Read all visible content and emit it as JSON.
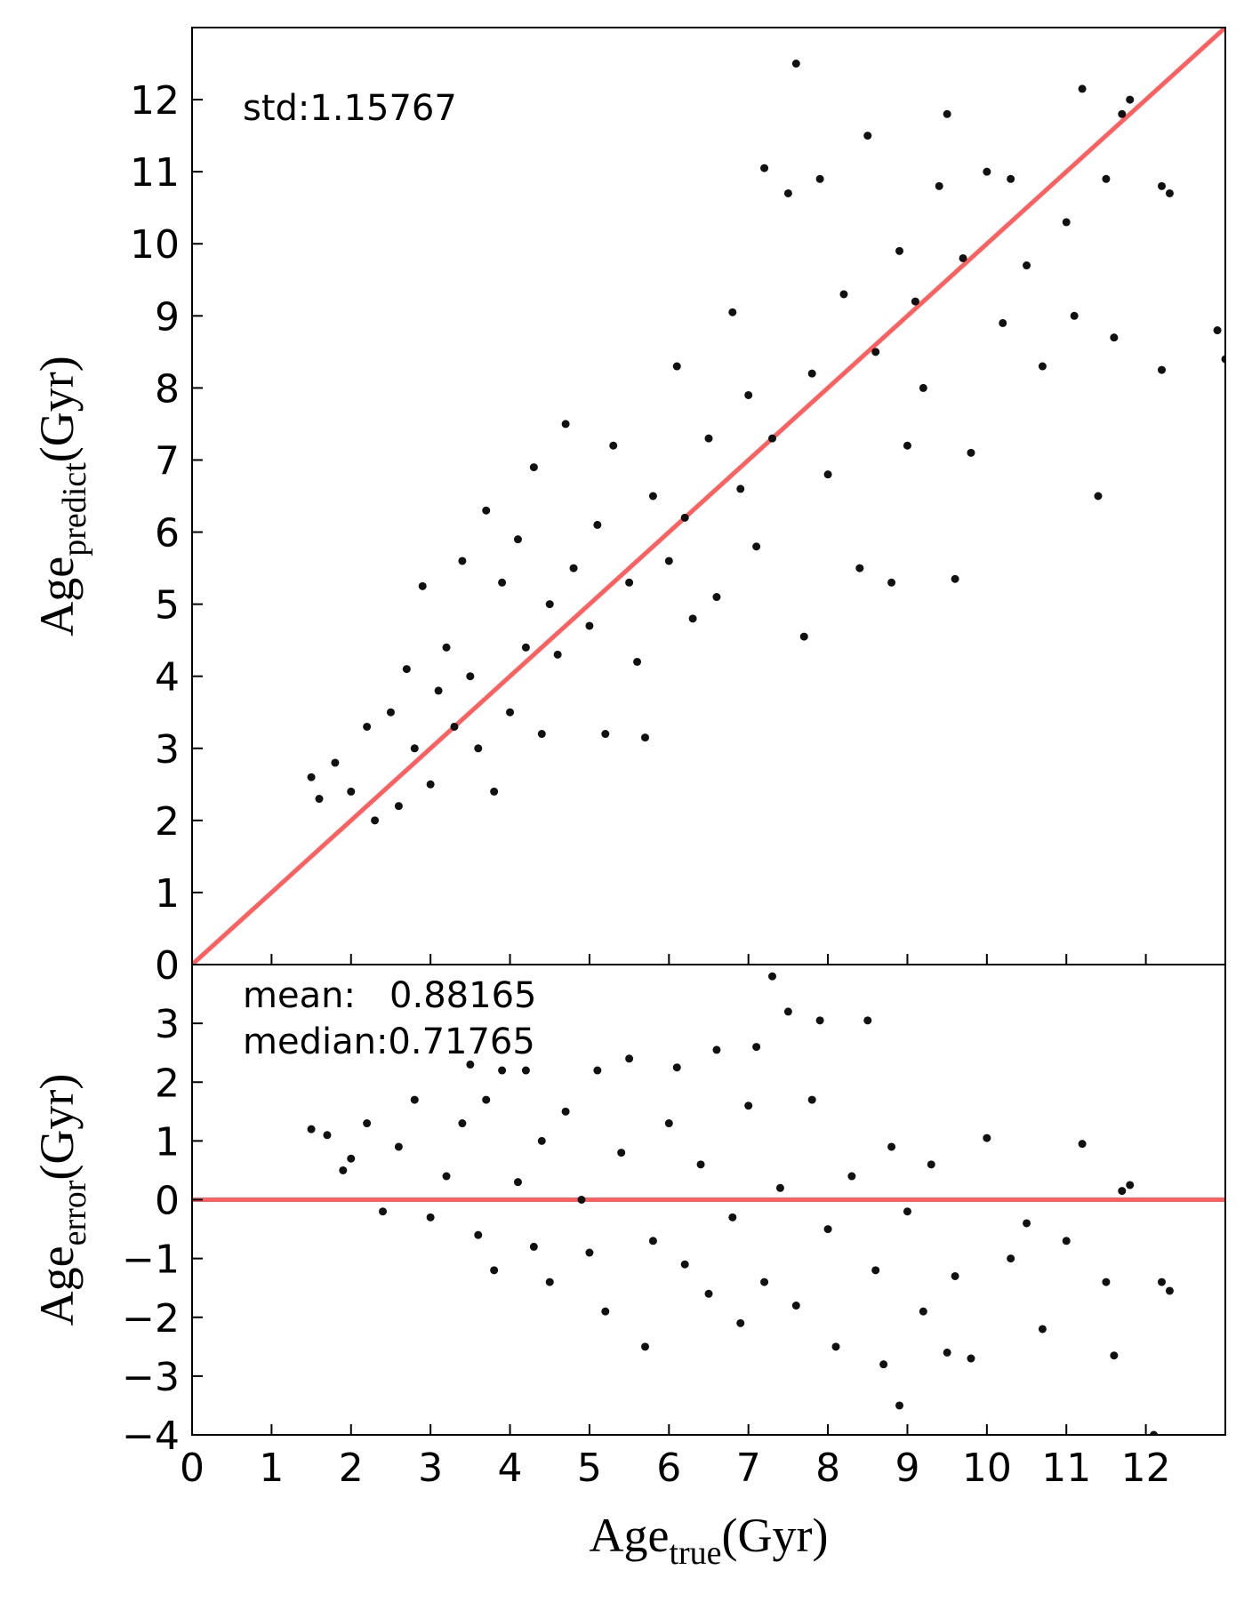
{
  "chart_data": [
    {
      "type": "scatter",
      "annotation": "std:1.15767",
      "ylabel": {
        "main": "Age",
        "sub": "predict",
        "unit": "(Gyr)"
      },
      "xlim": [
        0,
        13
      ],
      "ylim": [
        0,
        13
      ],
      "xticks": [
        0,
        1,
        2,
        3,
        4,
        5,
        6,
        7,
        8,
        9,
        10,
        11,
        12
      ],
      "show_xtick_labels": false,
      "yticks": [
        0,
        1,
        2,
        3,
        4,
        5,
        6,
        7,
        8,
        9,
        10,
        11,
        12
      ],
      "color": "#111111",
      "reference_line": {
        "slope": 1,
        "intercept": 0,
        "color": "#ff5f5f"
      },
      "x": [
        1.5,
        1.6,
        1.8,
        2.0,
        2.2,
        2.3,
        2.5,
        2.6,
        2.7,
        2.8,
        2.9,
        3.0,
        3.1,
        3.2,
        3.3,
        3.4,
        3.5,
        3.6,
        3.7,
        3.8,
        3.9,
        4.0,
        4.1,
        4.2,
        4.3,
        4.4,
        4.5,
        4.6,
        4.7,
        4.8,
        5.0,
        5.1,
        5.2,
        5.3,
        5.5,
        5.6,
        5.7,
        5.8,
        6.0,
        6.1,
        6.2,
        6.3,
        6.5,
        6.6,
        6.8,
        6.9,
        7.0,
        7.1,
        7.2,
        7.3,
        7.5,
        7.6,
        7.7,
        7.8,
        7.9,
        8.0,
        8.2,
        8.4,
        8.5,
        8.6,
        8.8,
        8.9,
        9.0,
        9.1,
        9.2,
        9.4,
        9.5,
        9.6,
        9.7,
        9.8,
        10.0,
        10.2,
        10.3,
        10.5,
        10.7,
        11.0,
        11.1,
        11.2,
        11.4,
        11.5,
        11.6,
        11.7,
        11.8,
        12.2,
        12.2,
        12.3,
        12.9,
        13.0
      ],
      "y": [
        2.6,
        2.3,
        2.8,
        2.4,
        3.3,
        2.0,
        3.5,
        2.2,
        4.1,
        3.0,
        5.25,
        2.5,
        3.8,
        4.4,
        3.3,
        5.6,
        4.0,
        3.0,
        6.3,
        2.4,
        5.3,
        3.5,
        5.9,
        4.4,
        6.9,
        3.2,
        5.0,
        4.3,
        7.5,
        5.5,
        4.7,
        6.1,
        3.2,
        7.2,
        5.3,
        4.2,
        3.15,
        6.5,
        5.6,
        8.3,
        6.2,
        4.8,
        7.3,
        5.1,
        9.05,
        6.6,
        7.9,
        5.8,
        11.05,
        7.3,
        10.7,
        12.5,
        4.55,
        8.2,
        10.9,
        6.8,
        9.3,
        5.5,
        11.5,
        8.5,
        5.3,
        9.9,
        7.2,
        9.2,
        8.0,
        10.8,
        11.8,
        5.35,
        9.8,
        7.1,
        11.0,
        8.9,
        10.9,
        9.7,
        8.3,
        10.3,
        9.0,
        12.15,
        6.5,
        10.9,
        8.7,
        11.8,
        12.0,
        10.8,
        8.25,
        10.7,
        8.8,
        8.4
      ]
    },
    {
      "type": "scatter",
      "annotations": [
        "mean:   0.88165",
        "median:0.71765"
      ],
      "ylabel": {
        "main": "Age",
        "sub": "error",
        "unit": "(Gyr)"
      },
      "xlabel": {
        "main": "Age",
        "sub": "true",
        "unit": "(Gyr)"
      },
      "xlim": [
        0,
        13
      ],
      "ylim": [
        -4,
        4
      ],
      "xticks": [
        0,
        1,
        2,
        3,
        4,
        5,
        6,
        7,
        8,
        9,
        10,
        11,
        12
      ],
      "show_xtick_labels": true,
      "yticks": [
        {
          "value": -4,
          "label": "−4"
        },
        {
          "value": -3,
          "label": "−3"
        },
        {
          "value": -2,
          "label": "−2"
        },
        {
          "value": -1,
          "label": "−1"
        },
        0,
        1,
        2,
        3
      ],
      "color": "#111111",
      "reference_line": {
        "slope": 0,
        "intercept": 0,
        "color": "#ff5f5f"
      },
      "x": [
        1.5,
        1.7,
        1.9,
        2.0,
        2.2,
        2.4,
        2.6,
        2.8,
        3.0,
        3.2,
        3.4,
        3.5,
        3.6,
        3.7,
        3.8,
        3.9,
        4.1,
        4.2,
        4.3,
        4.4,
        4.5,
        4.7,
        4.9,
        5.0,
        5.1,
        5.2,
        5.4,
        5.5,
        5.7,
        5.8,
        6.0,
        6.1,
        6.2,
        6.4,
        6.5,
        6.6,
        6.8,
        6.9,
        7.0,
        7.1,
        7.2,
        7.3,
        7.4,
        7.5,
        7.6,
        7.8,
        7.9,
        8.0,
        8.1,
        8.3,
        8.5,
        8.6,
        8.7,
        8.8,
        8.9,
        9.0,
        9.2,
        9.3,
        9.5,
        9.6,
        9.8,
        10.0,
        10.3,
        10.5,
        10.7,
        11.0,
        11.2,
        11.5,
        11.6,
        11.7,
        11.8,
        12.1,
        12.2,
        12.3
      ],
      "y": [
        1.2,
        1.1,
        0.5,
        0.7,
        1.3,
        -0.2,
        0.9,
        1.7,
        -0.3,
        0.4,
        1.3,
        2.3,
        -0.6,
        1.7,
        -1.2,
        2.2,
        0.3,
        2.2,
        -0.8,
        1.0,
        -1.4,
        1.5,
        0.0,
        -0.9,
        2.2,
        -1.9,
        0.8,
        2.4,
        -2.5,
        -0.7,
        1.3,
        2.25,
        -1.1,
        0.6,
        -1.6,
        2.55,
        -0.3,
        -2.1,
        1.6,
        2.6,
        -1.4,
        3.8,
        0.2,
        3.2,
        -1.8,
        1.7,
        3.05,
        -0.5,
        -2.5,
        0.4,
        3.05,
        -1.2,
        -2.8,
        0.9,
        -3.5,
        -0.2,
        -1.9,
        0.6,
        -2.6,
        -1.3,
        -2.7,
        1.05,
        -1.0,
        -0.4,
        -2.2,
        -0.7,
        0.95,
        -1.4,
        -2.65,
        0.15,
        0.25,
        -4.0,
        -1.4,
        -1.55
      ]
    }
  ]
}
